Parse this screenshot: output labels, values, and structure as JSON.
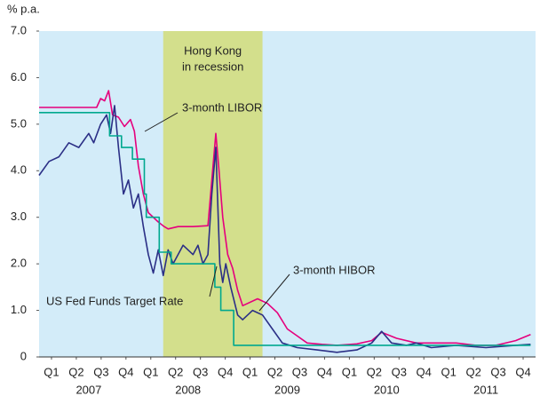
{
  "chart_data": {
    "type": "line",
    "unit_label": "% p.a.",
    "xlim": [
      2007,
      2012
    ],
    "ylim": [
      0,
      7
    ],
    "yticks": [
      0,
      {
        "value": 1,
        "label": "1.0"
      },
      {
        "value": 2,
        "label": "2.0"
      },
      {
        "value": 3,
        "label": "3.0"
      },
      {
        "value": 4,
        "label": "4.0"
      },
      {
        "value": 5,
        "label": "5.0"
      },
      {
        "value": 6,
        "label": "6.0"
      },
      {
        "value": 7,
        "label": "7.0"
      }
    ],
    "xticks": [
      {
        "value": 2007.125,
        "label": "Q1"
      },
      {
        "value": 2007.375,
        "label": "Q2"
      },
      {
        "value": 2007.625,
        "label": "Q3"
      },
      {
        "value": 2007.875,
        "label": "Q4"
      },
      {
        "value": 2008.125,
        "label": "Q1"
      },
      {
        "value": 2008.375,
        "label": "Q2"
      },
      {
        "value": 2008.625,
        "label": "Q3"
      },
      {
        "value": 2008.875,
        "label": "Q4"
      },
      {
        "value": 2009.125,
        "label": "Q1"
      },
      {
        "value": 2009.375,
        "label": "Q2"
      },
      {
        "value": 2009.625,
        "label": "Q3"
      },
      {
        "value": 2009.875,
        "label": "Q4"
      },
      {
        "value": 2010.125,
        "label": "Q1"
      },
      {
        "value": 2010.375,
        "label": "Q2"
      },
      {
        "value": 2010.625,
        "label": "Q3"
      },
      {
        "value": 2010.875,
        "label": "Q4"
      },
      {
        "value": 2011.125,
        "label": "Q1"
      },
      {
        "value": 2011.375,
        "label": "Q2"
      },
      {
        "value": 2011.625,
        "label": "Q3"
      },
      {
        "value": 2011.875,
        "label": "Q4"
      }
    ],
    "year_labels": [
      {
        "value": 2007.5,
        "label": "2007"
      },
      {
        "value": 2008.5,
        "label": "2008"
      },
      {
        "value": 2009.5,
        "label": "2009"
      },
      {
        "value": 2010.5,
        "label": "2010"
      },
      {
        "value": 2011.5,
        "label": "2011"
      }
    ],
    "shaded_regions": [
      {
        "start": 2008.25,
        "end": 2009.25,
        "label": [
          "Hong Kong",
          "in recession"
        ],
        "color": "#d3df8c"
      }
    ],
    "plot_background": "#d3ecf9",
    "series": [
      {
        "name": "3-month LIBOR",
        "color": "#e5007d",
        "x": [
          2007.0,
          2007.58,
          2007.62,
          2007.66,
          2007.7,
          2007.74,
          2007.8,
          2007.86,
          2007.92,
          2007.96,
          2008.0,
          2008.05,
          2008.1,
          2008.2,
          2008.26,
          2008.3,
          2008.4,
          2008.55,
          2008.7,
          2008.74,
          2008.78,
          2008.81,
          2008.85,
          2008.9,
          2008.95,
          2009.0,
          2009.05,
          2009.2,
          2009.3,
          2009.4,
          2009.5,
          2009.6,
          2009.7,
          2009.85,
          2010.0,
          2010.2,
          2010.35,
          2010.45,
          2010.6,
          2010.8,
          2011.0,
          2011.2,
          2011.4,
          2011.6,
          2011.8,
          2011.95
        ],
        "values": [
          5.36,
          5.36,
          5.55,
          5.5,
          5.72,
          5.2,
          5.15,
          4.95,
          5.1,
          4.85,
          4.1,
          3.5,
          3.1,
          2.9,
          2.8,
          2.75,
          2.8,
          2.8,
          2.82,
          3.8,
          4.8,
          4.05,
          3.0,
          2.2,
          1.9,
          1.43,
          1.1,
          1.25,
          1.15,
          0.95,
          0.6,
          0.45,
          0.3,
          0.27,
          0.25,
          0.28,
          0.35,
          0.53,
          0.4,
          0.3,
          0.3,
          0.3,
          0.25,
          0.25,
          0.35,
          0.48
        ]
      },
      {
        "name": "3-month HIBOR",
        "color": "#2b2f86",
        "x": [
          2007.0,
          2007.1,
          2007.2,
          2007.3,
          2007.4,
          2007.5,
          2007.55,
          2007.62,
          2007.68,
          2007.72,
          2007.76,
          2007.8,
          2007.85,
          2007.9,
          2007.95,
          2008.0,
          2008.05,
          2008.1,
          2008.15,
          2008.2,
          2008.25,
          2008.3,
          2008.35,
          2008.45,
          2008.55,
          2008.6,
          2008.65,
          2008.7,
          2008.74,
          2008.78,
          2008.82,
          2008.85,
          2008.88,
          2008.93,
          2009.0,
          2009.05,
          2009.15,
          2009.25,
          2009.35,
          2009.45,
          2009.6,
          2009.8,
          2010.0,
          2010.2,
          2010.35,
          2010.45,
          2010.55,
          2010.7,
          2010.8,
          2010.95,
          2011.2,
          2011.5,
          2011.8,
          2011.95
        ],
        "values": [
          3.9,
          4.2,
          4.3,
          4.6,
          4.5,
          4.8,
          4.6,
          5.0,
          5.2,
          4.8,
          5.4,
          4.5,
          3.5,
          3.8,
          3.2,
          3.5,
          2.8,
          2.2,
          1.8,
          2.3,
          1.75,
          2.3,
          2.0,
          2.4,
          2.2,
          2.4,
          2.0,
          2.2,
          3.5,
          4.5,
          2.0,
          1.6,
          2.0,
          1.5,
          0.9,
          0.8,
          1.0,
          0.9,
          0.6,
          0.3,
          0.2,
          0.15,
          0.1,
          0.15,
          0.3,
          0.55,
          0.3,
          0.25,
          0.3,
          0.2,
          0.25,
          0.2,
          0.25,
          0.27
        ]
      },
      {
        "name": "US Fed Funds Target Rate",
        "color": "#00a88f",
        "x": [
          2007.0,
          2007.71,
          2007.71,
          2007.83,
          2007.83,
          2007.94,
          2007.94,
          2008.06,
          2008.06,
          2008.08,
          2008.08,
          2008.21,
          2008.21,
          2008.33,
          2008.33,
          2008.77,
          2008.77,
          2008.83,
          2008.83,
          2008.96,
          2008.96,
          2011.95
        ],
        "values": [
          5.25,
          5.25,
          4.75,
          4.75,
          4.5,
          4.5,
          4.25,
          4.25,
          3.5,
          3.5,
          3.0,
          3.0,
          2.25,
          2.25,
          2.0,
          2.0,
          1.5,
          1.5,
          1.0,
          1.0,
          0.25,
          0.25
        ]
      }
    ]
  }
}
